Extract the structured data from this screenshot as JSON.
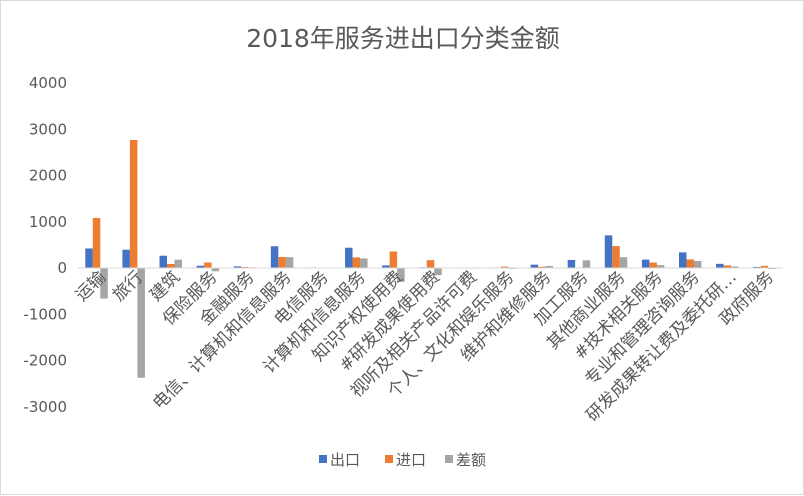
{
  "chart_data": {
    "type": "bar",
    "title": "2018年服务进出口分类金额",
    "ylim": [
      -3000,
      4000
    ],
    "yticks": [
      4000,
      3000,
      2000,
      1000,
      0,
      -1000,
      -2000,
      -3000
    ],
    "grid": false,
    "legend_position": "bottom",
    "categories": [
      "运输",
      "旅行",
      "建筑",
      "保险服务",
      "金融服务",
      "电信、计算机和信息服务",
      "电信服务",
      "计算机和信息服务",
      "知识产权使用费",
      "#研发成果使用费",
      "视听及相关产品许可费",
      "个人、文化和娱乐服务",
      "维护和维修服务",
      "加工服务",
      "其他商业服务",
      "#技术相关服务",
      "专业和管理咨询服务",
      "研发成果转让费及委托研…",
      "政府服务"
    ],
    "series": [
      {
        "name": "出口",
        "color": "#4472C4",
        "values": [
          423,
          395,
          266,
          49,
          35,
          471,
          12,
          438,
          56,
          15,
          2,
          12,
          72,
          174,
          706,
          181,
          338,
          90,
          23
        ]
      },
      {
        "name": "进口",
        "color": "#ED7D31",
        "values": [
          1083,
          2768,
          86,
          119,
          21,
          237,
          8,
          230,
          356,
          170,
          3,
          30,
          28,
          8,
          473,
          118,
          186,
          57,
          46
        ]
      },
      {
        "name": "差额",
        "color": "#A5A5A5",
        "values": [
          -660,
          -2373,
          180,
          -70,
          14,
          234,
          4,
          208,
          -300,
          -155,
          -1,
          -18,
          44,
          166,
          233,
          63,
          152,
          33,
          -23
        ]
      }
    ]
  }
}
